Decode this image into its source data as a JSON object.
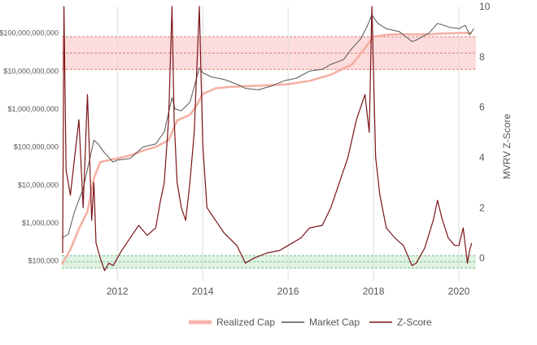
{
  "chart_data": {
    "type": "line",
    "title": "",
    "xlabel": "",
    "ylabel_left": "",
    "ylabel_right": "MVRV Z-Score",
    "x_ticks": [
      "2012",
      "2014",
      "2016",
      "2018",
      "2020"
    ],
    "x_range": [
      2010.7,
      2020.4
    ],
    "y_left_scale": "log",
    "y_left_range": [
      30000,
      500000000000
    ],
    "y_left_ticks": [
      {
        "value": 100000,
        "label": "$100,000"
      },
      {
        "value": 1000000,
        "label": "$1,000,000"
      },
      {
        "value": 10000000,
        "label": "$10,000,000"
      },
      {
        "value": 100000000,
        "label": "$100,000,000"
      },
      {
        "value": 1000000000,
        "label": "$1,000,000,000"
      },
      {
        "value": 10000000000,
        "label": "$10,000,000,000"
      },
      {
        "value": 100000000000,
        "label": "$100,000,000,000"
      }
    ],
    "y_right_range": [
      -0.9,
      10
    ],
    "y_right_ticks": [
      0,
      2,
      4,
      6,
      8,
      10
    ],
    "grid": "vertical",
    "legend_position": "bottom",
    "colors": {
      "realized_cap": "#f4a799",
      "market_cap": "#555555",
      "z_score": "#7b1418",
      "red_band": "#fcdcdc",
      "red_band_line": "#e07b72",
      "green_band": "#dff2e3",
      "green_band_line": "#7cc08c",
      "grid": "#dddddd"
    },
    "bands": [
      {
        "name": "red",
        "axis": "right",
        "from": 7.5,
        "to": 8.8
      },
      {
        "name": "green",
        "axis": "right",
        "from": -0.4,
        "to": 0.1
      }
    ],
    "series": [
      {
        "name": "Realized Cap",
        "axis": "left",
        "x": [
          2010.7,
          2010.9,
          2011.1,
          2011.3,
          2011.45,
          2011.6,
          2011.8,
          2012.0,
          2012.3,
          2012.6,
          2012.9,
          2013.2,
          2013.4,
          2013.7,
          2013.85,
          2014.0,
          2014.3,
          2014.6,
          2015.0,
          2015.5,
          2016.0,
          2016.5,
          2017.0,
          2017.5,
          2017.8,
          2018.0,
          2018.3,
          2018.6,
          2019.0,
          2019.3,
          2019.6,
          2020.0,
          2020.3
        ],
        "y": [
          80000,
          200000,
          700000,
          2000000,
          15000000,
          40000000,
          45000000,
          50000000,
          60000000,
          80000000,
          100000000,
          150000000,
          500000000,
          700000000,
          1200000000,
          2500000000,
          3500000000,
          3800000000,
          4000000000,
          4200000000,
          4500000000,
          5500000000,
          8000000000,
          15000000000,
          40000000000,
          80000000000,
          90000000000,
          93000000000,
          92000000000,
          92000000000,
          97000000000,
          100000000000,
          100000000000
        ]
      },
      {
        "name": "Market Cap",
        "axis": "left",
        "x": [
          2010.7,
          2010.85,
          2011.0,
          2011.2,
          2011.45,
          2011.55,
          2011.7,
          2011.9,
          2012.0,
          2012.3,
          2012.6,
          2012.9,
          2013.1,
          2013.28,
          2013.35,
          2013.5,
          2013.7,
          2013.92,
          2014.0,
          2014.2,
          2014.5,
          2014.8,
          2015.0,
          2015.3,
          2015.6,
          2015.9,
          2016.2,
          2016.5,
          2016.8,
          2017.0,
          2017.3,
          2017.5,
          2017.7,
          2017.85,
          2017.96,
          2018.1,
          2018.3,
          2018.6,
          2018.9,
          2019.0,
          2019.3,
          2019.5,
          2019.8,
          2020.0,
          2020.15,
          2020.25,
          2020.35
        ],
        "y": [
          400000,
          500000,
          2000000,
          8000000,
          150000000,
          120000000,
          70000000,
          40000000,
          45000000,
          50000000,
          100000000,
          120000000,
          250000000,
          2000000000,
          1000000000,
          900000000,
          1500000000,
          12000000000,
          9000000000,
          7000000000,
          6000000000,
          4500000000,
          3500000000,
          3200000000,
          4000000000,
          5500000000,
          6500000000,
          10000000000,
          11000000000,
          15000000000,
          20000000000,
          40000000000,
          70000000000,
          150000000000,
          300000000000,
          180000000000,
          130000000000,
          110000000000,
          60000000000,
          65000000000,
          100000000000,
          180000000000,
          140000000000,
          130000000000,
          160000000000,
          90000000000,
          130000000000
        ]
      },
      {
        "name": "Z-Score",
        "axis": "right",
        "x": [
          2010.72,
          2010.75,
          2010.8,
          2010.9,
          2011.0,
          2011.1,
          2011.2,
          2011.3,
          2011.4,
          2011.45,
          2011.5,
          2011.6,
          2011.7,
          2011.8,
          2011.9,
          2012.0,
          2012.1,
          2012.3,
          2012.5,
          2012.7,
          2012.9,
          2013.0,
          2013.1,
          2013.2,
          2013.28,
          2013.33,
          2013.4,
          2013.5,
          2013.6,
          2013.7,
          2013.8,
          2013.92,
          2014.0,
          2014.1,
          2014.3,
          2014.5,
          2014.8,
          2015.0,
          2015.2,
          2015.5,
          2015.8,
          2016.0,
          2016.3,
          2016.5,
          2016.8,
          2017.0,
          2017.2,
          2017.4,
          2017.6,
          2017.8,
          2017.9,
          2017.96,
          2018.05,
          2018.15,
          2018.3,
          2018.5,
          2018.7,
          2018.9,
          2019.0,
          2019.2,
          2019.4,
          2019.5,
          2019.6,
          2019.75,
          2019.9,
          2020.0,
          2020.1,
          2020.2,
          2020.25,
          2020.3
        ],
        "y": [
          0.2,
          10.0,
          3.5,
          2.5,
          4.0,
          5.5,
          2.0,
          6.5,
          1.5,
          3.0,
          0.6,
          0.0,
          -0.5,
          -0.2,
          -0.3,
          0.0,
          0.3,
          0.8,
          1.3,
          0.9,
          1.2,
          2.2,
          3.0,
          5.5,
          10.0,
          5.5,
          3.0,
          2.0,
          1.5,
          3.0,
          5.0,
          10.0,
          4.5,
          2.0,
          1.5,
          1.0,
          0.5,
          -0.2,
          0.0,
          0.2,
          0.3,
          0.5,
          0.8,
          1.2,
          1.3,
          2.0,
          3.0,
          4.0,
          5.5,
          6.5,
          5.0,
          10.0,
          4.0,
          2.5,
          1.2,
          0.8,
          0.5,
          -0.3,
          -0.2,
          0.4,
          1.5,
          2.3,
          1.6,
          0.8,
          0.5,
          0.5,
          1.2,
          -0.2,
          0.3,
          0.6
        ]
      }
    ]
  },
  "legend": [
    {
      "label": "Realized Cap",
      "swatch": "band",
      "color": "#f4a799"
    },
    {
      "label": "Market Cap",
      "swatch": "line",
      "color": "#555555"
    },
    {
      "label": "Z-Score",
      "swatch": "line",
      "color": "#7b1418"
    }
  ]
}
